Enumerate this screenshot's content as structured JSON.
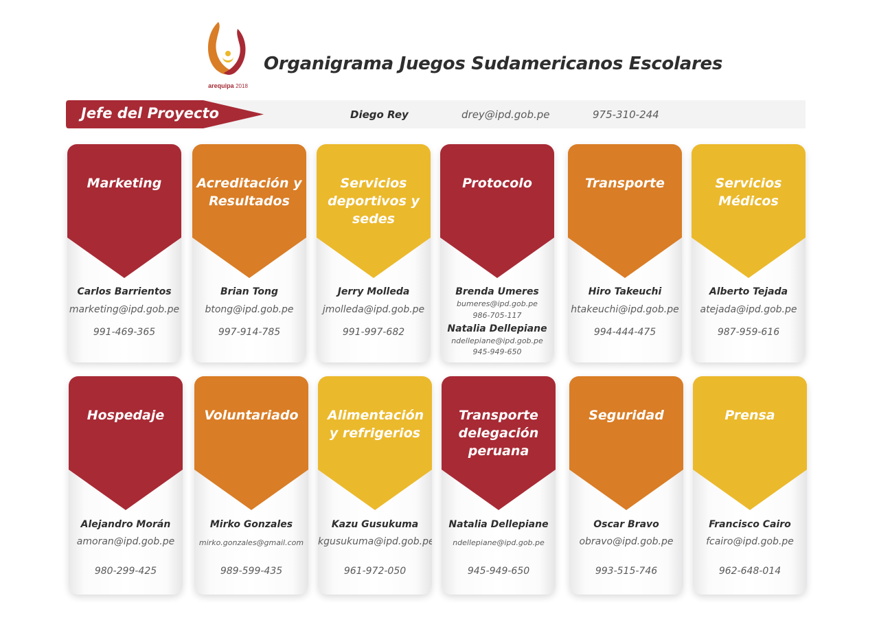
{
  "header": {
    "logo_text": "arequipa",
    "logo_year": "2018",
    "title": "Organigrama Juegos Sudamericanos Escolares"
  },
  "jefe": {
    "label": "Jefe del Proyecto",
    "name": "Diego Rey",
    "email": "drey@ipd.gob.pe",
    "phone": "975-310-244"
  },
  "colors": {
    "red": "#a82a35",
    "orange": "#d97d26",
    "yellow": "#ebb92c"
  },
  "row1": [
    {
      "dept": "Marketing",
      "color": "red",
      "name": "Carlos Barrientos",
      "email": "marketing@ipd.gob.pe",
      "phone": "991-469-365"
    },
    {
      "dept": "Acreditación y Resultados",
      "color": "orange",
      "name": "Brian Tong",
      "email": "btong@ipd.gob.pe",
      "phone": "997-914-785"
    },
    {
      "dept": "Servicios deportivos y sedes",
      "color": "yellow",
      "name": "Jerry Molleda",
      "email": "jmolleda@ipd.gob.pe",
      "phone": "991-997-682"
    },
    {
      "dept": "Protocolo",
      "color": "red",
      "name": "Brenda Umeres",
      "email": "bumeres@ipd.gob.pe",
      "phone": "986-705-117",
      "name2": "Natalia Dellepiane",
      "email2": "ndellepiane@ipd.gob.pe",
      "phone2": "945-949-650"
    },
    {
      "dept": "Transporte",
      "color": "orange",
      "name": "Hiro Takeuchi",
      "email": "htakeuchi@ipd.gob.pe",
      "phone": "994-444-475"
    },
    {
      "dept": "Servicios Médicos",
      "color": "yellow",
      "name": "Alberto Tejada",
      "email": "atejada@ipd.gob.pe",
      "phone": "987-959-616"
    }
  ],
  "row2": [
    {
      "dept": "Hospedaje",
      "color": "red",
      "name": "Alejandro Morán",
      "email": "amoran@ipd.gob.pe",
      "phone": "980-299-425"
    },
    {
      "dept": "Voluntariado",
      "color": "orange",
      "name": "Mirko Gonzales",
      "email": "mirko.gonzales@gmail.com",
      "phone": "989-599-435"
    },
    {
      "dept": "Alimentación y refrigerios",
      "color": "yellow",
      "name": "Kazu Gusukuma",
      "email": "kgusukuma@ipd.gob.pe",
      "phone": "961-972-050"
    },
    {
      "dept": "Transporte delegación peruana",
      "color": "red",
      "name": "Natalia Dellepiane",
      "email": "ndellepiane@ipd.gob.pe",
      "phone": "945-949-650"
    },
    {
      "dept": "Seguridad",
      "color": "orange",
      "name": "Oscar Bravo",
      "email": "obravo@ipd.gob.pe",
      "phone": "993-515-746"
    },
    {
      "dept": "Prensa",
      "color": "yellow",
      "name": "Francisco Cairo",
      "email": "fcairo@ipd.gob.pe",
      "phone": "962-648-014"
    }
  ]
}
